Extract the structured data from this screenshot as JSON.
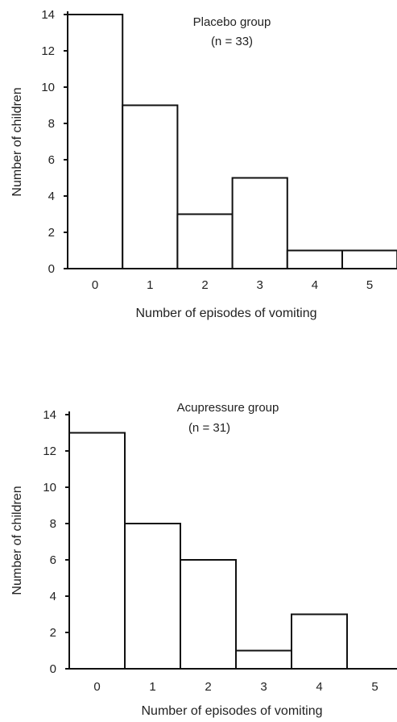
{
  "chart_data": [
    {
      "type": "bar",
      "title": "Placebo group",
      "subtitle": "(n = 33)",
      "xlabel": "Number of episodes of vomiting",
      "ylabel": "Number of children",
      "categories": [
        "0",
        "1",
        "2",
        "3",
        "4",
        "5"
      ],
      "values": [
        14,
        9,
        3,
        5,
        1,
        1
      ],
      "ylim": [
        0,
        14
      ],
      "yticks": [
        0,
        2,
        4,
        6,
        8,
        10,
        12,
        14
      ],
      "grid": false
    },
    {
      "type": "bar",
      "title": "Acupressure group",
      "subtitle": "(n = 31)",
      "xlabel": "Number of episodes of vomiting",
      "ylabel": "Number of children",
      "categories": [
        "0",
        "1",
        "2",
        "3",
        "4",
        "5"
      ],
      "values": [
        13,
        8,
        6,
        1,
        3,
        0
      ],
      "ylim": [
        0,
        14
      ],
      "yticks": [
        0,
        2,
        4,
        6,
        8,
        10,
        12,
        14
      ],
      "grid": false
    }
  ]
}
